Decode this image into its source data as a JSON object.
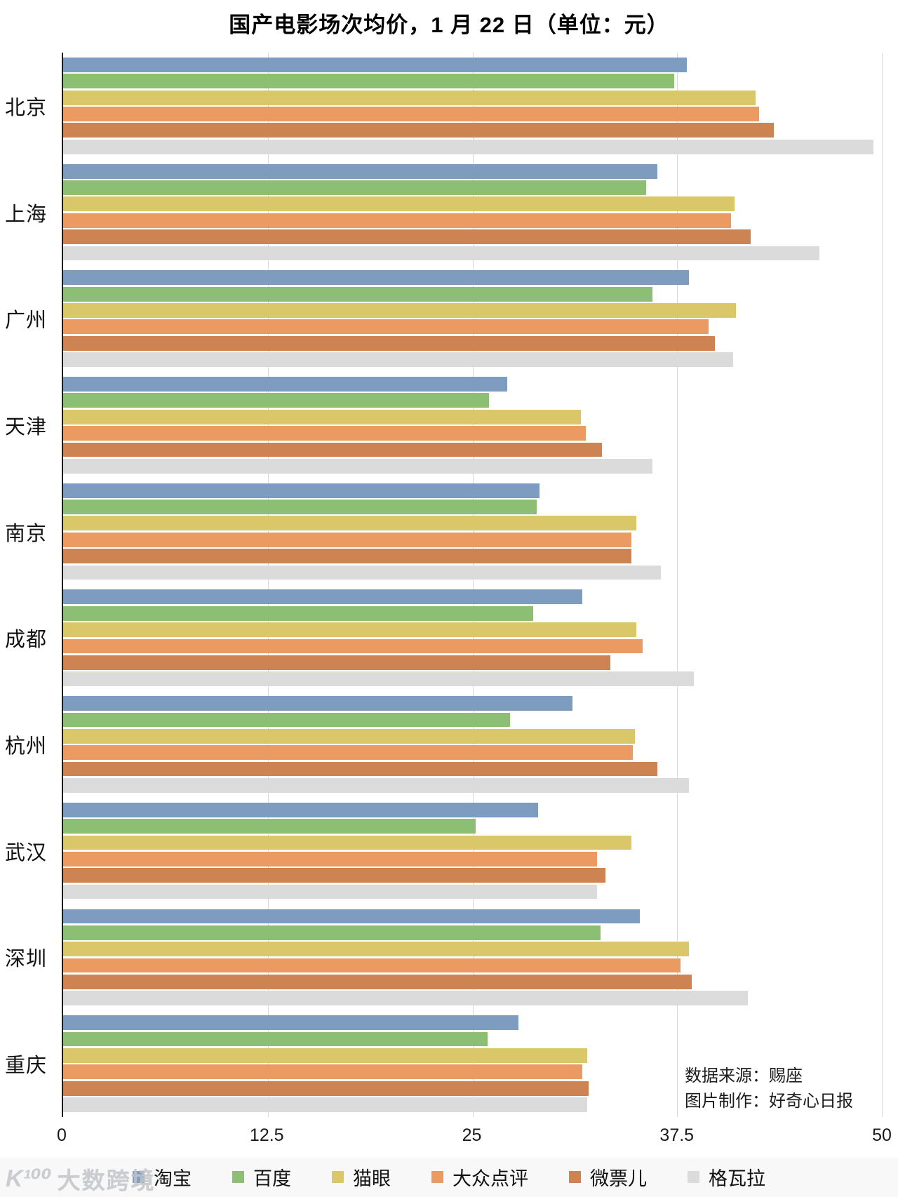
{
  "title": "国产电影场次均价，1 月 22 日（单位：元）",
  "source": {
    "line1": "数据来源：赐座",
    "line2": "图片制作：好奇心日报"
  },
  "watermark": {
    "logo": "K¹⁰⁰",
    "text": "大数跨境"
  },
  "chart_data": {
    "type": "bar",
    "orientation": "horizontal",
    "title": "国产电影场次均价，1 月 22 日（单位：元）",
    "categories": [
      "北京",
      "上海",
      "广州",
      "天津",
      "南京",
      "成都",
      "杭州",
      "武汉",
      "深圳",
      "重庆"
    ],
    "series": [
      {
        "name": "淘宝",
        "color": "#7E9CC0",
        "values": [
          38.1,
          36.3,
          38.2,
          27.1,
          29.1,
          31.7,
          31.1,
          29.0,
          35.2,
          27.8
        ]
      },
      {
        "name": "百度",
        "color": "#8CBE74",
        "values": [
          37.3,
          35.6,
          36.0,
          26.0,
          28.9,
          28.7,
          27.3,
          25.2,
          32.8,
          25.9
        ]
      },
      {
        "name": "猫眼",
        "color": "#D9C76A",
        "values": [
          42.3,
          41.0,
          41.1,
          31.6,
          35.0,
          35.0,
          34.9,
          34.7,
          38.2,
          32.0
        ]
      },
      {
        "name": "大众点评",
        "color": "#EB9B62",
        "values": [
          42.5,
          40.8,
          39.4,
          31.9,
          34.7,
          35.4,
          34.8,
          32.6,
          37.7,
          31.7
        ]
      },
      {
        "name": "微票儿",
        "color": "#CD8452",
        "values": [
          43.4,
          42.0,
          39.8,
          32.9,
          34.7,
          33.4,
          36.3,
          33.1,
          38.4,
          32.1
        ]
      },
      {
        "name": "格瓦拉",
        "color": "#DBDBDB",
        "values": [
          49.5,
          46.2,
          40.9,
          36.0,
          36.5,
          38.5,
          38.2,
          32.6,
          41.8,
          32.0
        ]
      }
    ],
    "xlim": [
      0,
      50
    ],
    "xticks": [
      0,
      12.5,
      25,
      37.5,
      50
    ],
    "grid": "vertical",
    "legend_position": "bottom",
    "axis_color": "#1c1c1c",
    "gridline_color": "#d9d9d9"
  }
}
